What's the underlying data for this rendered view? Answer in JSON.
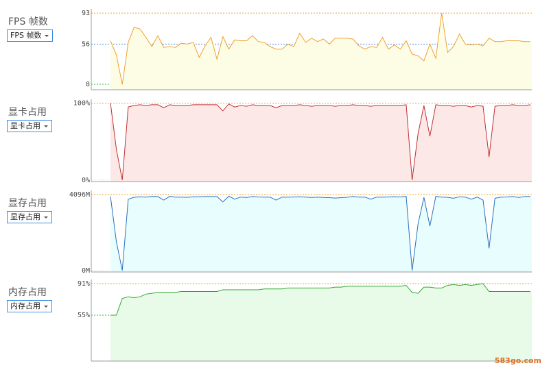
{
  "chart_data": [
    {
      "type": "area",
      "title": "FPS 帧数",
      "dropdown": "FPS 帧数",
      "color": "#f0a030",
      "fill_color": "#fdfde6",
      "ylim": [
        1.5,
        98
      ],
      "yticks": [
        93,
        56,
        8
      ],
      "grid_colors": [
        "#f0a030",
        "#4a8ee0",
        "#3cb43c"
      ],
      "values": [
        60,
        43,
        8,
        58,
        76,
        74,
        64,
        53,
        66,
        52,
        53,
        52,
        57,
        56,
        58,
        40,
        54,
        64,
        38,
        65,
        50,
        61,
        60,
        60,
        66,
        59,
        58,
        53,
        50,
        50,
        56,
        53,
        69,
        58,
        63,
        59,
        62,
        56,
        63,
        63,
        63,
        62,
        54,
        50,
        53,
        52,
        64,
        50,
        55,
        50,
        60,
        44,
        42,
        36,
        56,
        39,
        93,
        46,
        53,
        68,
        56,
        55,
        56,
        54,
        63,
        59,
        59,
        60,
        60,
        60,
        59,
        59
      ]
    },
    {
      "type": "area",
      "title": "显卡占用",
      "dropdown": "显卡占用",
      "color": "#c03030",
      "fill_color": "#fde8e8",
      "ylim": [
        -2,
        105
      ],
      "yticks": [
        {
          "value": 100,
          "label": "100%"
        },
        {
          "value": 0,
          "label": "0%"
        }
      ],
      "grid_colors": [
        "#f0a030",
        "#dddddd"
      ],
      "values": [
        100,
        40,
        0,
        95,
        97,
        98,
        97,
        98,
        98,
        94,
        98,
        97,
        97,
        97,
        98,
        98,
        98,
        98,
        98,
        90,
        99,
        95,
        97,
        96,
        98,
        97,
        97,
        97,
        94,
        97,
        97,
        97,
        98,
        97,
        96,
        97,
        97,
        97,
        96,
        97,
        97,
        98,
        97,
        97,
        96,
        97,
        97,
        97,
        97,
        97,
        98,
        0,
        60,
        97,
        57,
        98,
        97,
        97,
        96,
        97,
        97,
        95,
        97,
        96,
        30,
        96,
        97,
        97,
        98,
        97,
        97,
        98
      ]
    },
    {
      "type": "area",
      "title": "显存占用",
      "dropdown": "显存占用",
      "color": "#2a6fc0",
      "fill_color": "#e8fdfd",
      "ylim": [
        -80,
        4320
      ],
      "yticks": [
        {
          "value": 4096,
          "label": "4096M"
        },
        {
          "value": 0,
          "label": "0M"
        }
      ],
      "grid_colors": [
        "#f0a030",
        "#dddddd"
      ],
      "values": [
        4000,
        1550,
        0,
        3850,
        3950,
        3980,
        3960,
        4000,
        3990,
        3800,
        4000,
        3960,
        3960,
        3950,
        3980,
        3980,
        3990,
        3990,
        3990,
        3700,
        4010,
        3850,
        3960,
        3940,
        3990,
        3970,
        3960,
        3960,
        3800,
        3960,
        3960,
        3970,
        3980,
        3960,
        3940,
        3960,
        3940,
        3930,
        3910,
        3930,
        3950,
        4000,
        3960,
        3960,
        3850,
        3960,
        3960,
        3970,
        3980,
        3970,
        4000,
        0,
        2500,
        3950,
        2400,
        4000,
        3960,
        3950,
        3900,
        3980,
        3960,
        3850,
        3960,
        3800,
        1200,
        3900,
        3960,
        3970,
        3990,
        3940,
        3990,
        4000
      ]
    },
    {
      "type": "area",
      "title": "内存占用",
      "dropdown": "内存占用",
      "color": "#2ea82e",
      "fill_color": "#e8fae8",
      "ylim": [
        2.6,
        95.7
      ],
      "yticks": [
        {
          "value": 91,
          "label": "91%"
        },
        {
          "value": 55,
          "label": "55%"
        }
      ],
      "grid_colors": [
        "#f0a030",
        "#3cb43c"
      ],
      "values": [
        55,
        55,
        74,
        76,
        75,
        76,
        79,
        80,
        81,
        81,
        81,
        81,
        82,
        82,
        82,
        82,
        82,
        82,
        82,
        84,
        84,
        84,
        84,
        84,
        84,
        84,
        85,
        85,
        85,
        85,
        86,
        86,
        86,
        86,
        86,
        86,
        86,
        86,
        87,
        87,
        88,
        88,
        88,
        88,
        88,
        88,
        88,
        88,
        88,
        88,
        89,
        81,
        80,
        87,
        87,
        86,
        86,
        89,
        90,
        89,
        90,
        89,
        90,
        91,
        82,
        82,
        82,
        82,
        82,
        82,
        82,
        82
      ]
    }
  ],
  "watermark": "583go.com"
}
